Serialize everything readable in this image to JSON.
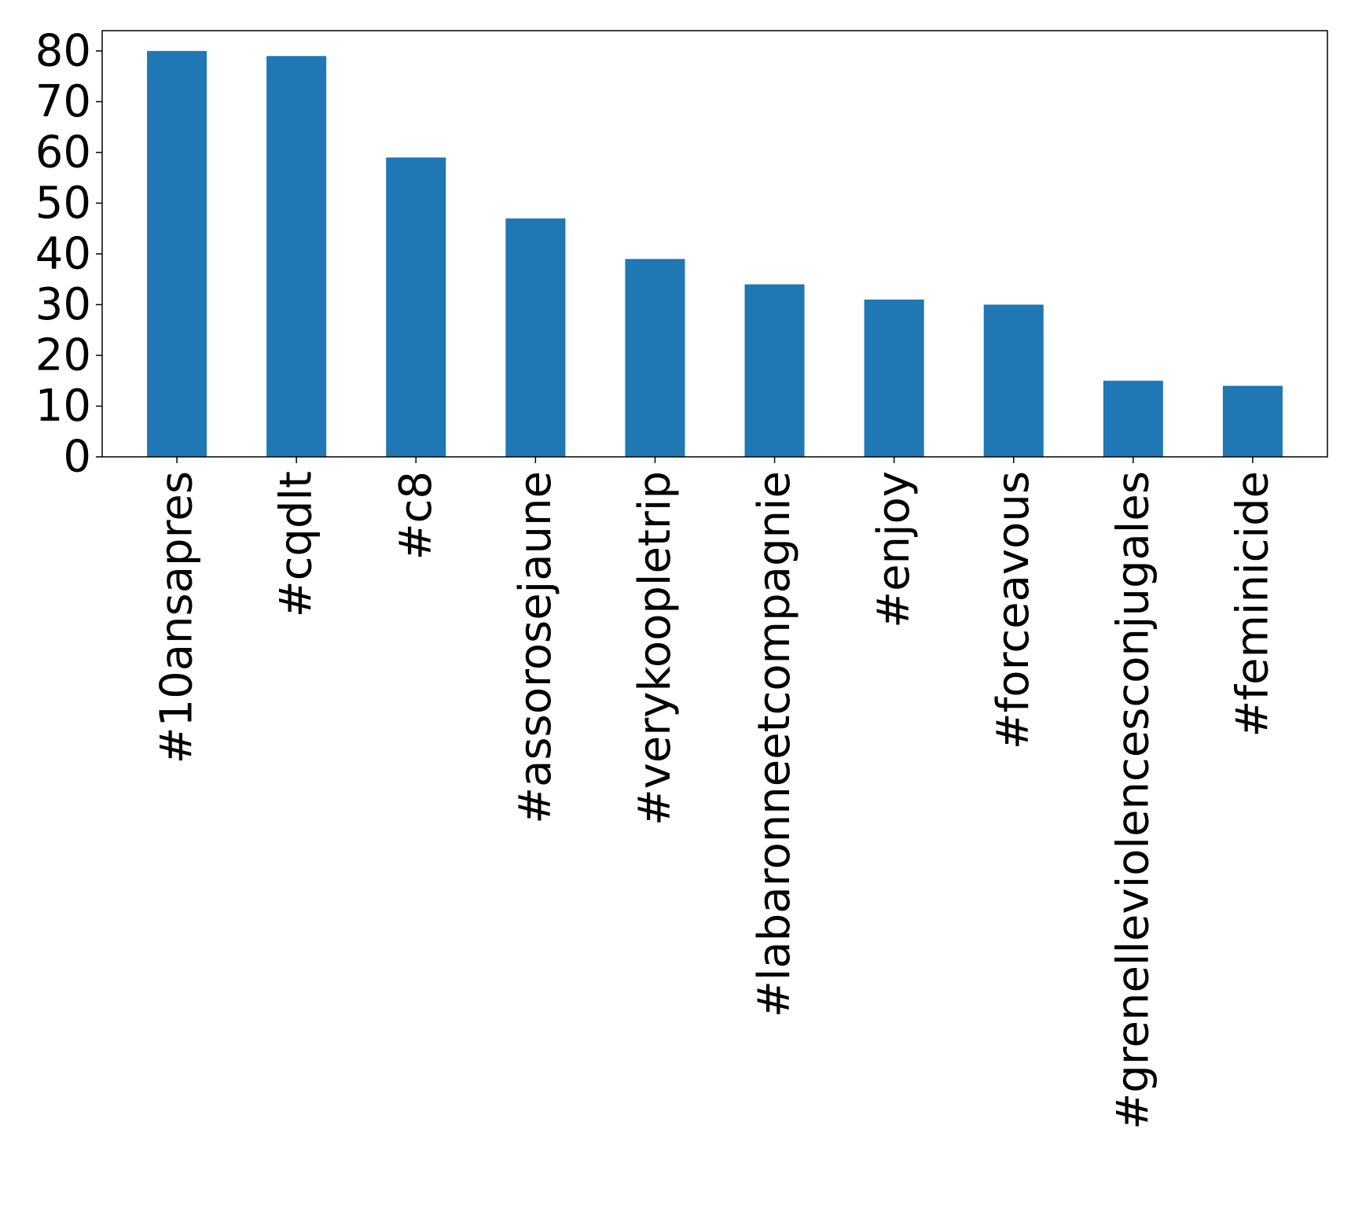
{
  "chart_data": {
    "type": "bar",
    "title": "",
    "xlabel": "",
    "ylabel": "",
    "categories": [
      "#10ansapres",
      "#cqdlt",
      "#c8",
      "#assorosejaune",
      "#verykoopletrip",
      "#labaronneetcompagnie",
      "#enjoy",
      "#forceavous",
      "#grenelleviolencesconjugales",
      "#feminicide"
    ],
    "values": [
      80,
      79,
      59,
      47,
      39,
      34,
      31,
      30,
      15,
      14
    ],
    "ylim": [
      0,
      84
    ],
    "yticks": [
      0,
      10,
      20,
      30,
      40,
      50,
      60,
      70,
      80
    ],
    "grid": false,
    "legend": "none",
    "bar_color": "#1f77b4"
  }
}
